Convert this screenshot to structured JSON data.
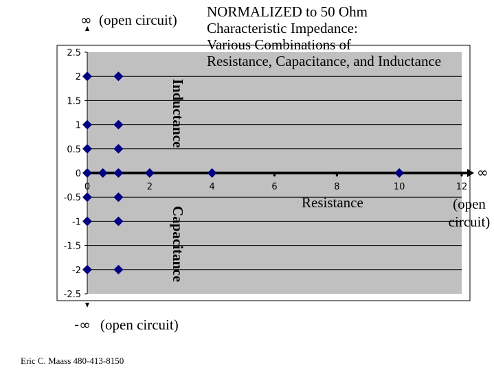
{
  "chart_data": {
    "type": "scatter",
    "title": "NORMALIZED to 50 Ohm Characteristic Impedance: Various Combinations of Resistance, Capacitance, and Inductance",
    "xlabel": "Resistance",
    "xlim": [
      0,
      12
    ],
    "ylim": [
      -2.5,
      2.5
    ],
    "x_ticks": [
      "0",
      "2",
      "4",
      "6",
      "8",
      "10",
      "12"
    ],
    "y_ticks": [
      "2.5",
      "2",
      "1.5",
      "1",
      "0.5",
      "0",
      "-0.5",
      "-1",
      "-1.5",
      "-2",
      "-2.5"
    ],
    "grid": "horizontal",
    "annotations": {
      "upper": "Inductance",
      "lower": "Capacitance",
      "x_infinity": "∞",
      "x_infinity_note": "(open circuit)",
      "top_infinity": "∞",
      "top_note": "(open circuit)",
      "bottom_infinity": "-∞",
      "bottom_note": "(open circuit)"
    },
    "points": [
      {
        "x": 0,
        "y": 2
      },
      {
        "x": 1,
        "y": 2
      },
      {
        "x": 0,
        "y": 1
      },
      {
        "x": 1,
        "y": 1
      },
      {
        "x": 0,
        "y": 0.5
      },
      {
        "x": 1,
        "y": 0.5
      },
      {
        "x": 0,
        "y": 0
      },
      {
        "x": 0.5,
        "y": 0
      },
      {
        "x": 1,
        "y": 0
      },
      {
        "x": 2,
        "y": 0
      },
      {
        "x": 4,
        "y": 0
      },
      {
        "x": 10,
        "y": 0
      },
      {
        "x": 0,
        "y": -0.5
      },
      {
        "x": 1,
        "y": -0.5
      },
      {
        "x": 0,
        "y": -1
      },
      {
        "x": 1,
        "y": -1
      },
      {
        "x": 0,
        "y": -2
      },
      {
        "x": 1,
        "y": -2
      }
    ],
    "colors": {
      "marker": "#000080",
      "plot_bg": "#c0c0c0"
    }
  },
  "title_lines": [
    "NORMALIZED to 50 Ohm",
    "Characteristic Impedance:",
    "Various Combinations of",
    "Resistance, Capacitance, and Inductance"
  ],
  "credit": "Eric C. Maass  480-413-8150"
}
